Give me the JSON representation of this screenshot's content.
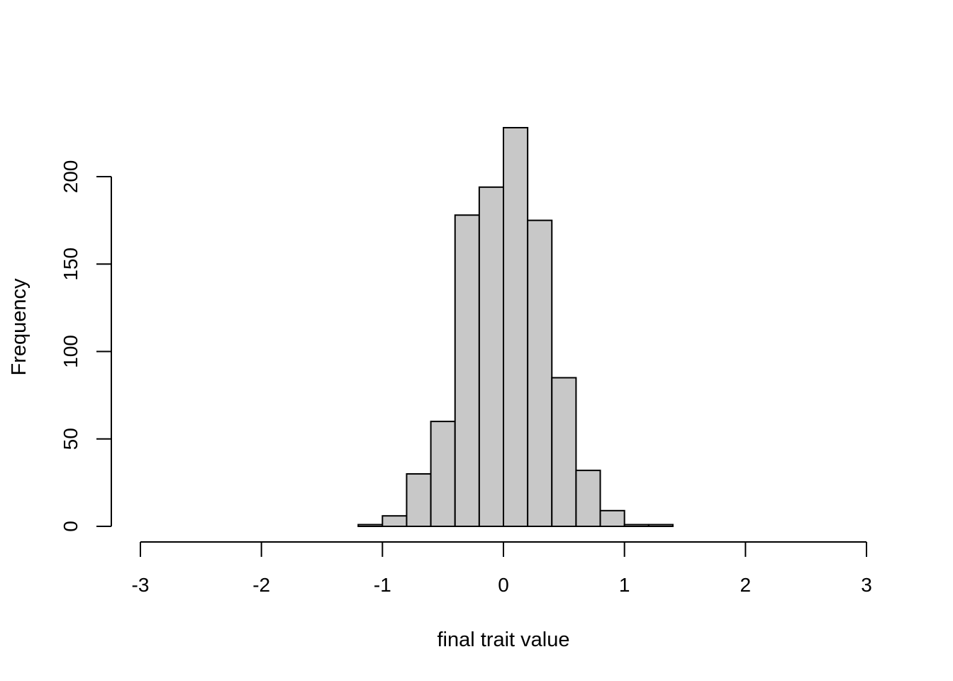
{
  "chart_data": {
    "type": "bar",
    "title": "",
    "xlabel": "final trait value",
    "ylabel": "Frequency",
    "xlim": [
      -3,
      3
    ],
    "ylim": [
      0,
      228
    ],
    "x_ticks": [
      -3,
      -2,
      -1,
      0,
      1,
      2,
      3
    ],
    "x_tick_labels": [
      "-3",
      "-2",
      "-1",
      "0",
      "1",
      "2",
      "3"
    ],
    "y_ticks": [
      0,
      50,
      100,
      150,
      200
    ],
    "y_tick_labels": [
      "0",
      "50",
      "100",
      "150",
      "200"
    ],
    "bin_edges": [
      -1.2,
      -1.0,
      -0.8,
      -0.6,
      -0.4,
      -0.2,
      0.0,
      0.2,
      0.4,
      0.6,
      0.8,
      1.0,
      1.2,
      1.4
    ],
    "values": [
      1,
      6,
      30,
      60,
      178,
      194,
      228,
      175,
      85,
      32,
      9,
      1,
      1
    ],
    "bar_fill": "#c8c8c8",
    "bar_stroke": "#000000",
    "grid": false,
    "legend": "none"
  }
}
